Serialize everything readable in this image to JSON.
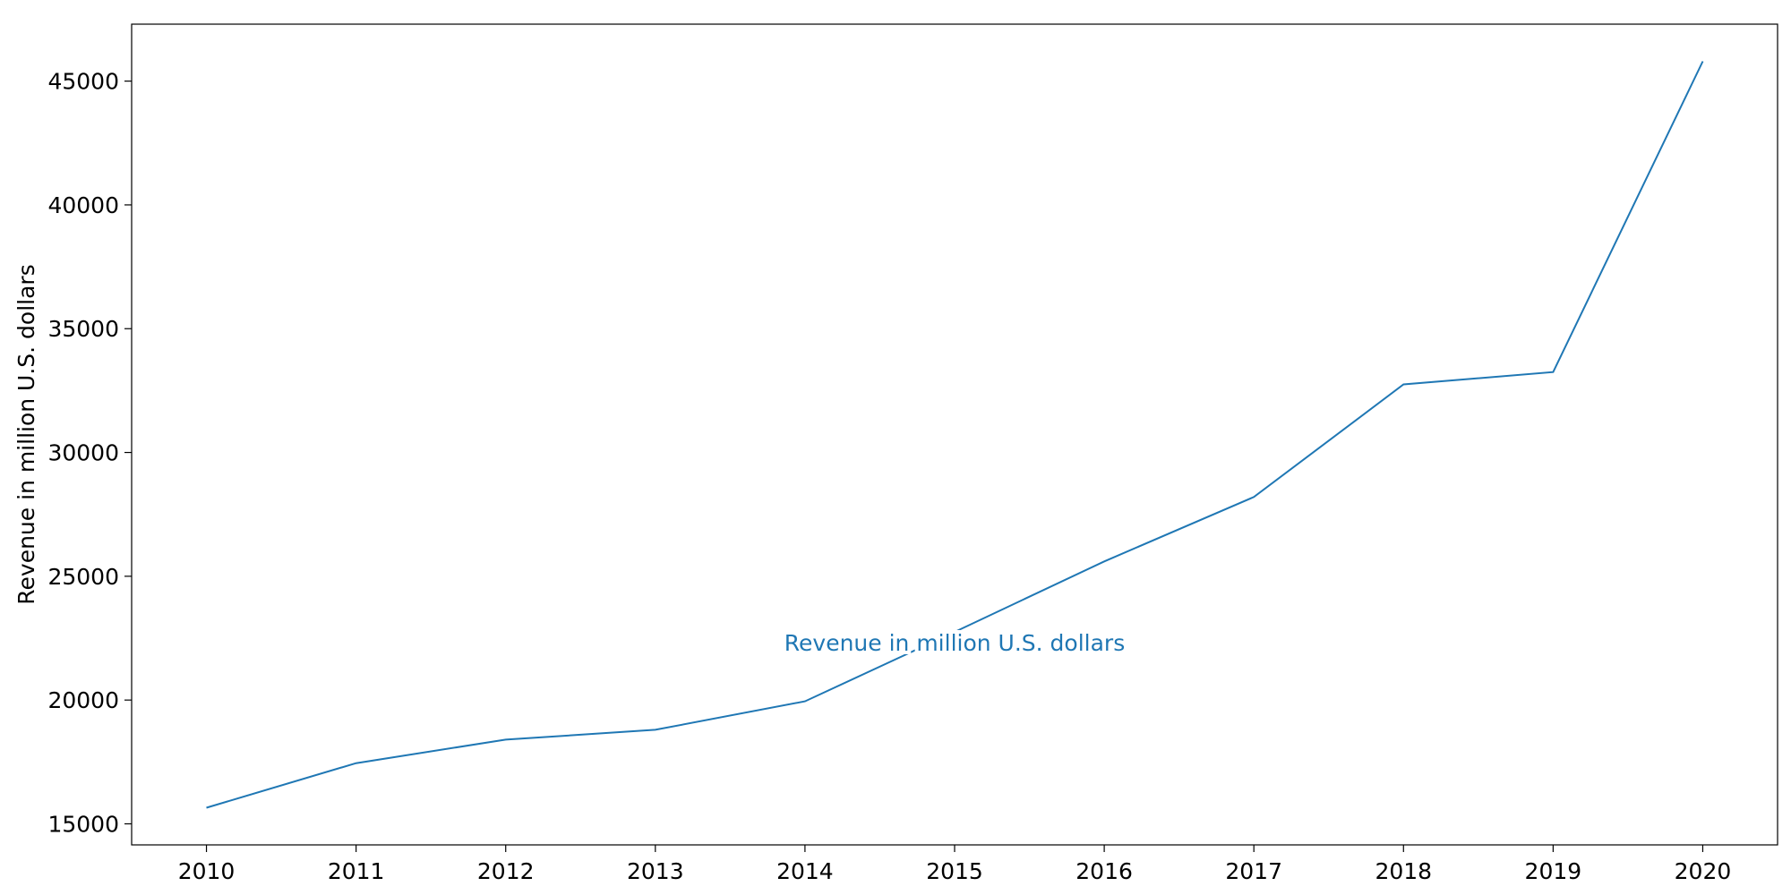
{
  "chart_data": {
    "type": "line",
    "x": [
      2010,
      2011,
      2012,
      2013,
      2014,
      2015,
      2016,
      2017,
      2018,
      2019,
      2020
    ],
    "series": [
      {
        "name": "Revenue in million U.S. dollars",
        "values": [
          15650,
          17450,
          18400,
          18800,
          19950,
          22750,
          25600,
          28200,
          32750,
          33250,
          45800
        ]
      }
    ],
    "title": "",
    "xlabel": "",
    "ylabel": "Revenue in million U.S. dollars",
    "x_ticks": [
      "2010",
      "2011",
      "2012",
      "2013",
      "2014",
      "2015",
      "2016",
      "2017",
      "2018",
      "2019",
      "2020"
    ],
    "y_ticks": [
      15000,
      20000,
      25000,
      30000,
      35000,
      40000,
      45000
    ],
    "xlim": [
      2009.5,
      2020.5
    ],
    "ylim": [
      14150,
      47300
    ],
    "grid": false,
    "legend": "none",
    "colors": {
      "line": "#1f77b4",
      "axes": "#000000"
    }
  }
}
